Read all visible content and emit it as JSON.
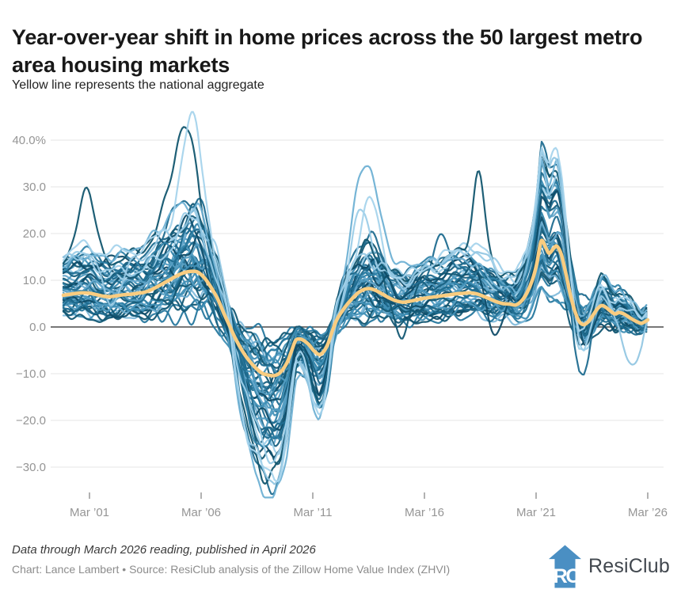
{
  "header": {
    "title": "Year-over-year shift in home prices across the 50 largest metro area housing markets",
    "subtitle": "Yellow line represents the national aggregate"
  },
  "footer": {
    "note": "Data through March 2026 reading, published in April 2026",
    "credit": "Chart: Lance Lambert • Source: ResiClub analysis of the Zillow Home Value Index (ZHVI)",
    "brand": "ResiClub"
  },
  "chart_data": {
    "type": "line",
    "title": "Year-over-year shift in home prices across the 50 largest metro area housing markets",
    "subtitle": "Yellow line represents the national aggregate",
    "grid": true,
    "grid_color": "#E5E5E5",
    "zero_line_color": "#4A4A4A",
    "tick_color": "#999999",
    "axis_label_color": "#959595",
    "x_axis": {
      "range": [
        2000.0,
        2026.17
      ],
      "ticks": [
        {
          "label": "Mar ’01",
          "year": 2001.17
        },
        {
          "label": "Mar ’06",
          "year": 2006.17
        },
        {
          "label": "Mar ’11",
          "year": 2011.17
        },
        {
          "label": "Mar ’16",
          "year": 2016.17
        },
        {
          "label": "Mar ’21",
          "year": 2021.17
        },
        {
          "label": "Mar ’26",
          "year": 2026.17
        }
      ]
    },
    "y_axis": {
      "unit": "percent year-over-year",
      "range": [
        -37,
        47
      ],
      "ticks": [
        {
          "label": "40.0%",
          "value": 40
        },
        {
          "label": "30.0",
          "value": 30
        },
        {
          "label": "20.0",
          "value": 20
        },
        {
          "label": "10.0",
          "value": 10
        },
        {
          "label": "0.0",
          "value": 0
        },
        {
          "label": "−10.0",
          "value": -10
        },
        {
          "label": "−20.0",
          "value": -20
        },
        {
          "label": "−30.0",
          "value": -30
        }
      ]
    },
    "national_series": {
      "name": "National aggregate",
      "color": "#F9CC80",
      "stroke_width": 4.5,
      "points": [
        [
          2000.0,
          6.8
        ],
        [
          2000.3,
          7.0
        ],
        [
          2000.6,
          7.2
        ],
        [
          2000.9,
          7.3
        ],
        [
          2001.2,
          7.2
        ],
        [
          2001.5,
          6.9
        ],
        [
          2001.8,
          6.6
        ],
        [
          2002.1,
          6.5
        ],
        [
          2002.4,
          6.7
        ],
        [
          2002.7,
          6.9
        ],
        [
          2003.0,
          7.0
        ],
        [
          2003.3,
          7.2
        ],
        [
          2003.6,
          7.4
        ],
        [
          2003.9,
          7.9
        ],
        [
          2004.2,
          8.6
        ],
        [
          2004.5,
          9.4
        ],
        [
          2004.8,
          10.2
        ],
        [
          2005.1,
          11.0
        ],
        [
          2005.4,
          11.6
        ],
        [
          2005.7,
          11.9
        ],
        [
          2006.0,
          11.8
        ],
        [
          2006.3,
          10.6
        ],
        [
          2006.6,
          8.6
        ],
        [
          2006.9,
          6.1
        ],
        [
          2007.2,
          2.8
        ],
        [
          2007.45,
          0.2
        ],
        [
          2007.7,
          -2.4
        ],
        [
          2008.0,
          -5.0
        ],
        [
          2008.3,
          -7.1
        ],
        [
          2008.6,
          -8.7
        ],
        [
          2008.9,
          -9.9
        ],
        [
          2009.2,
          -10.3
        ],
        [
          2009.45,
          -10.4
        ],
        [
          2009.7,
          -9.8
        ],
        [
          2010.0,
          -7.8
        ],
        [
          2010.2,
          -5.4
        ],
        [
          2010.4,
          -2.9
        ],
        [
          2010.6,
          -2.6
        ],
        [
          2010.8,
          -3.0
        ],
        [
          2011.0,
          -3.8
        ],
        [
          2011.2,
          -5.0
        ],
        [
          2011.45,
          -5.9
        ],
        [
          2011.65,
          -5.3
        ],
        [
          2011.85,
          -3.6
        ],
        [
          2012.05,
          -0.8
        ],
        [
          2012.25,
          1.6
        ],
        [
          2012.5,
          3.5
        ],
        [
          2012.75,
          5.1
        ],
        [
          2013.0,
          6.4
        ],
        [
          2013.25,
          7.5
        ],
        [
          2013.5,
          8.1
        ],
        [
          2013.75,
          8.2
        ],
        [
          2014.0,
          7.8
        ],
        [
          2014.3,
          7.0
        ],
        [
          2014.6,
          6.2
        ],
        [
          2014.9,
          5.6
        ],
        [
          2015.2,
          5.3
        ],
        [
          2015.5,
          5.5
        ],
        [
          2015.8,
          5.8
        ],
        [
          2016.1,
          6.1
        ],
        [
          2016.4,
          6.3
        ],
        [
          2016.7,
          6.5
        ],
        [
          2017.0,
          6.7
        ],
        [
          2017.3,
          6.9
        ],
        [
          2017.6,
          7.1
        ],
        [
          2017.9,
          7.2
        ],
        [
          2018.2,
          7.3
        ],
        [
          2018.5,
          7.1
        ],
        [
          2018.8,
          6.6
        ],
        [
          2019.1,
          6.0
        ],
        [
          2019.4,
          5.4
        ],
        [
          2019.7,
          5.0
        ],
        [
          2020.0,
          4.9
        ],
        [
          2020.25,
          4.7
        ],
        [
          2020.5,
          5.5
        ],
        [
          2020.75,
          7.2
        ],
        [
          2021.0,
          10.0
        ],
        [
          2021.2,
          13.5
        ],
        [
          2021.4,
          18.4
        ],
        [
          2021.6,
          17.0
        ],
        [
          2021.75,
          15.8
        ],
        [
          2021.95,
          16.8
        ],
        [
          2022.1,
          17.3
        ],
        [
          2022.3,
          15.5
        ],
        [
          2022.5,
          11.5
        ],
        [
          2022.7,
          7.0
        ],
        [
          2022.9,
          3.5
        ],
        [
          2023.1,
          1.2
        ],
        [
          2023.3,
          0.5
        ],
        [
          2023.5,
          1.1
        ],
        [
          2023.7,
          2.4
        ],
        [
          2023.9,
          3.8
        ],
        [
          2024.1,
          4.6
        ],
        [
          2024.3,
          4.2
        ],
        [
          2024.5,
          3.4
        ],
        [
          2024.7,
          2.8
        ],
        [
          2024.9,
          3.1
        ],
        [
          2025.1,
          2.8
        ],
        [
          2025.3,
          2.2
        ],
        [
          2025.5,
          1.6
        ],
        [
          2025.7,
          1.1
        ],
        [
          2025.9,
          0.8
        ],
        [
          2026.17,
          1.5
        ]
      ]
    },
    "metro_lines": {
      "description": "50 largest metro areas, unlabeled individual lines in shades of blue",
      "count": 50,
      "stroke_width": 2.2,
      "palette": [
        "#0F4C68",
        "#145874",
        "#1A6282",
        "#206D90",
        "#27789E",
        "#3183A9",
        "#408FB5",
        "#529CC1",
        "#68AACD",
        "#83BCDB",
        "#9CCDE8"
      ],
      "color_overrides": {
        "39": "#9FD0E8",
        "46": "#12566F",
        "47": "#6FB1D4",
        "48": "#93C7E3",
        "49": "#A6D4EC"
      },
      "value_clamp": [
        -36.5,
        46.5
      ],
      "dispersion": [
        [
          2000,
          3.2
        ],
        [
          2001,
          4.2
        ],
        [
          2002,
          3.8
        ],
        [
          2003,
          3.8
        ],
        [
          2004,
          5.0
        ],
        [
          2005,
          7.0
        ],
        [
          2005.8,
          8.0
        ],
        [
          2006.5,
          8.0
        ],
        [
          2007.5,
          7.0
        ],
        [
          2008.5,
          7.5
        ],
        [
          2009.3,
          8.0
        ],
        [
          2010,
          5.5
        ],
        [
          2011,
          4.5
        ],
        [
          2012,
          4.0
        ],
        [
          2013,
          5.5
        ],
        [
          2013.8,
          6.5
        ],
        [
          2014.5,
          5.0
        ],
        [
          2015.5,
          4.0
        ],
        [
          2016.5,
          3.6
        ],
        [
          2017.5,
          3.6
        ],
        [
          2018.5,
          4.0
        ],
        [
          2019.5,
          4.2
        ],
        [
          2020.5,
          3.6
        ],
        [
          2021.4,
          6.0
        ],
        [
          2022.2,
          6.0
        ],
        [
          2023.0,
          6.5
        ],
        [
          2023.4,
          7.0
        ],
        [
          2024,
          4.8
        ],
        [
          2025,
          3.8
        ],
        [
          2026.17,
          3.2
        ]
      ],
      "spike_events": [
        {
          "line": 46,
          "year": 2001.05,
          "h": 16,
          "w": 0.35
        },
        {
          "line": 46,
          "year": 2005.35,
          "h": 17,
          "w": 0.5
        },
        {
          "line": 46,
          "year": 2018.6,
          "h": 17,
          "w": 0.25
        },
        {
          "line": 49,
          "year": 2005.8,
          "h": 20,
          "w": 0.5
        },
        {
          "line": 49,
          "year": 2013.75,
          "h": 10,
          "w": 0.4
        },
        {
          "line": 47,
          "year": 2013.5,
          "h": 16,
          "w": 0.5
        },
        {
          "line": 45,
          "year": 2013.3,
          "h": 12,
          "w": 0.45
        },
        {
          "line": 43,
          "year": 2016.95,
          "h": 10,
          "w": 0.3
        },
        {
          "line": 42,
          "year": 2019.35,
          "h": -16,
          "w": 0.4
        },
        {
          "line": 41,
          "year": 2023.25,
          "h": -14,
          "w": 0.45
        },
        {
          "line": 40,
          "year": 2015.05,
          "h": -13,
          "w": 0.4
        },
        {
          "line": 48,
          "year": 2025.35,
          "h": -11,
          "w": 0.5
        },
        {
          "line": 48,
          "year": 2002.2,
          "h": -9,
          "w": 0.5
        },
        {
          "line": 39,
          "year": 2023.2,
          "h": -10,
          "w": 0.5
        }
      ]
    }
  },
  "logo": {
    "icon_color": "#4A8FC3",
    "letters": "RC"
  }
}
